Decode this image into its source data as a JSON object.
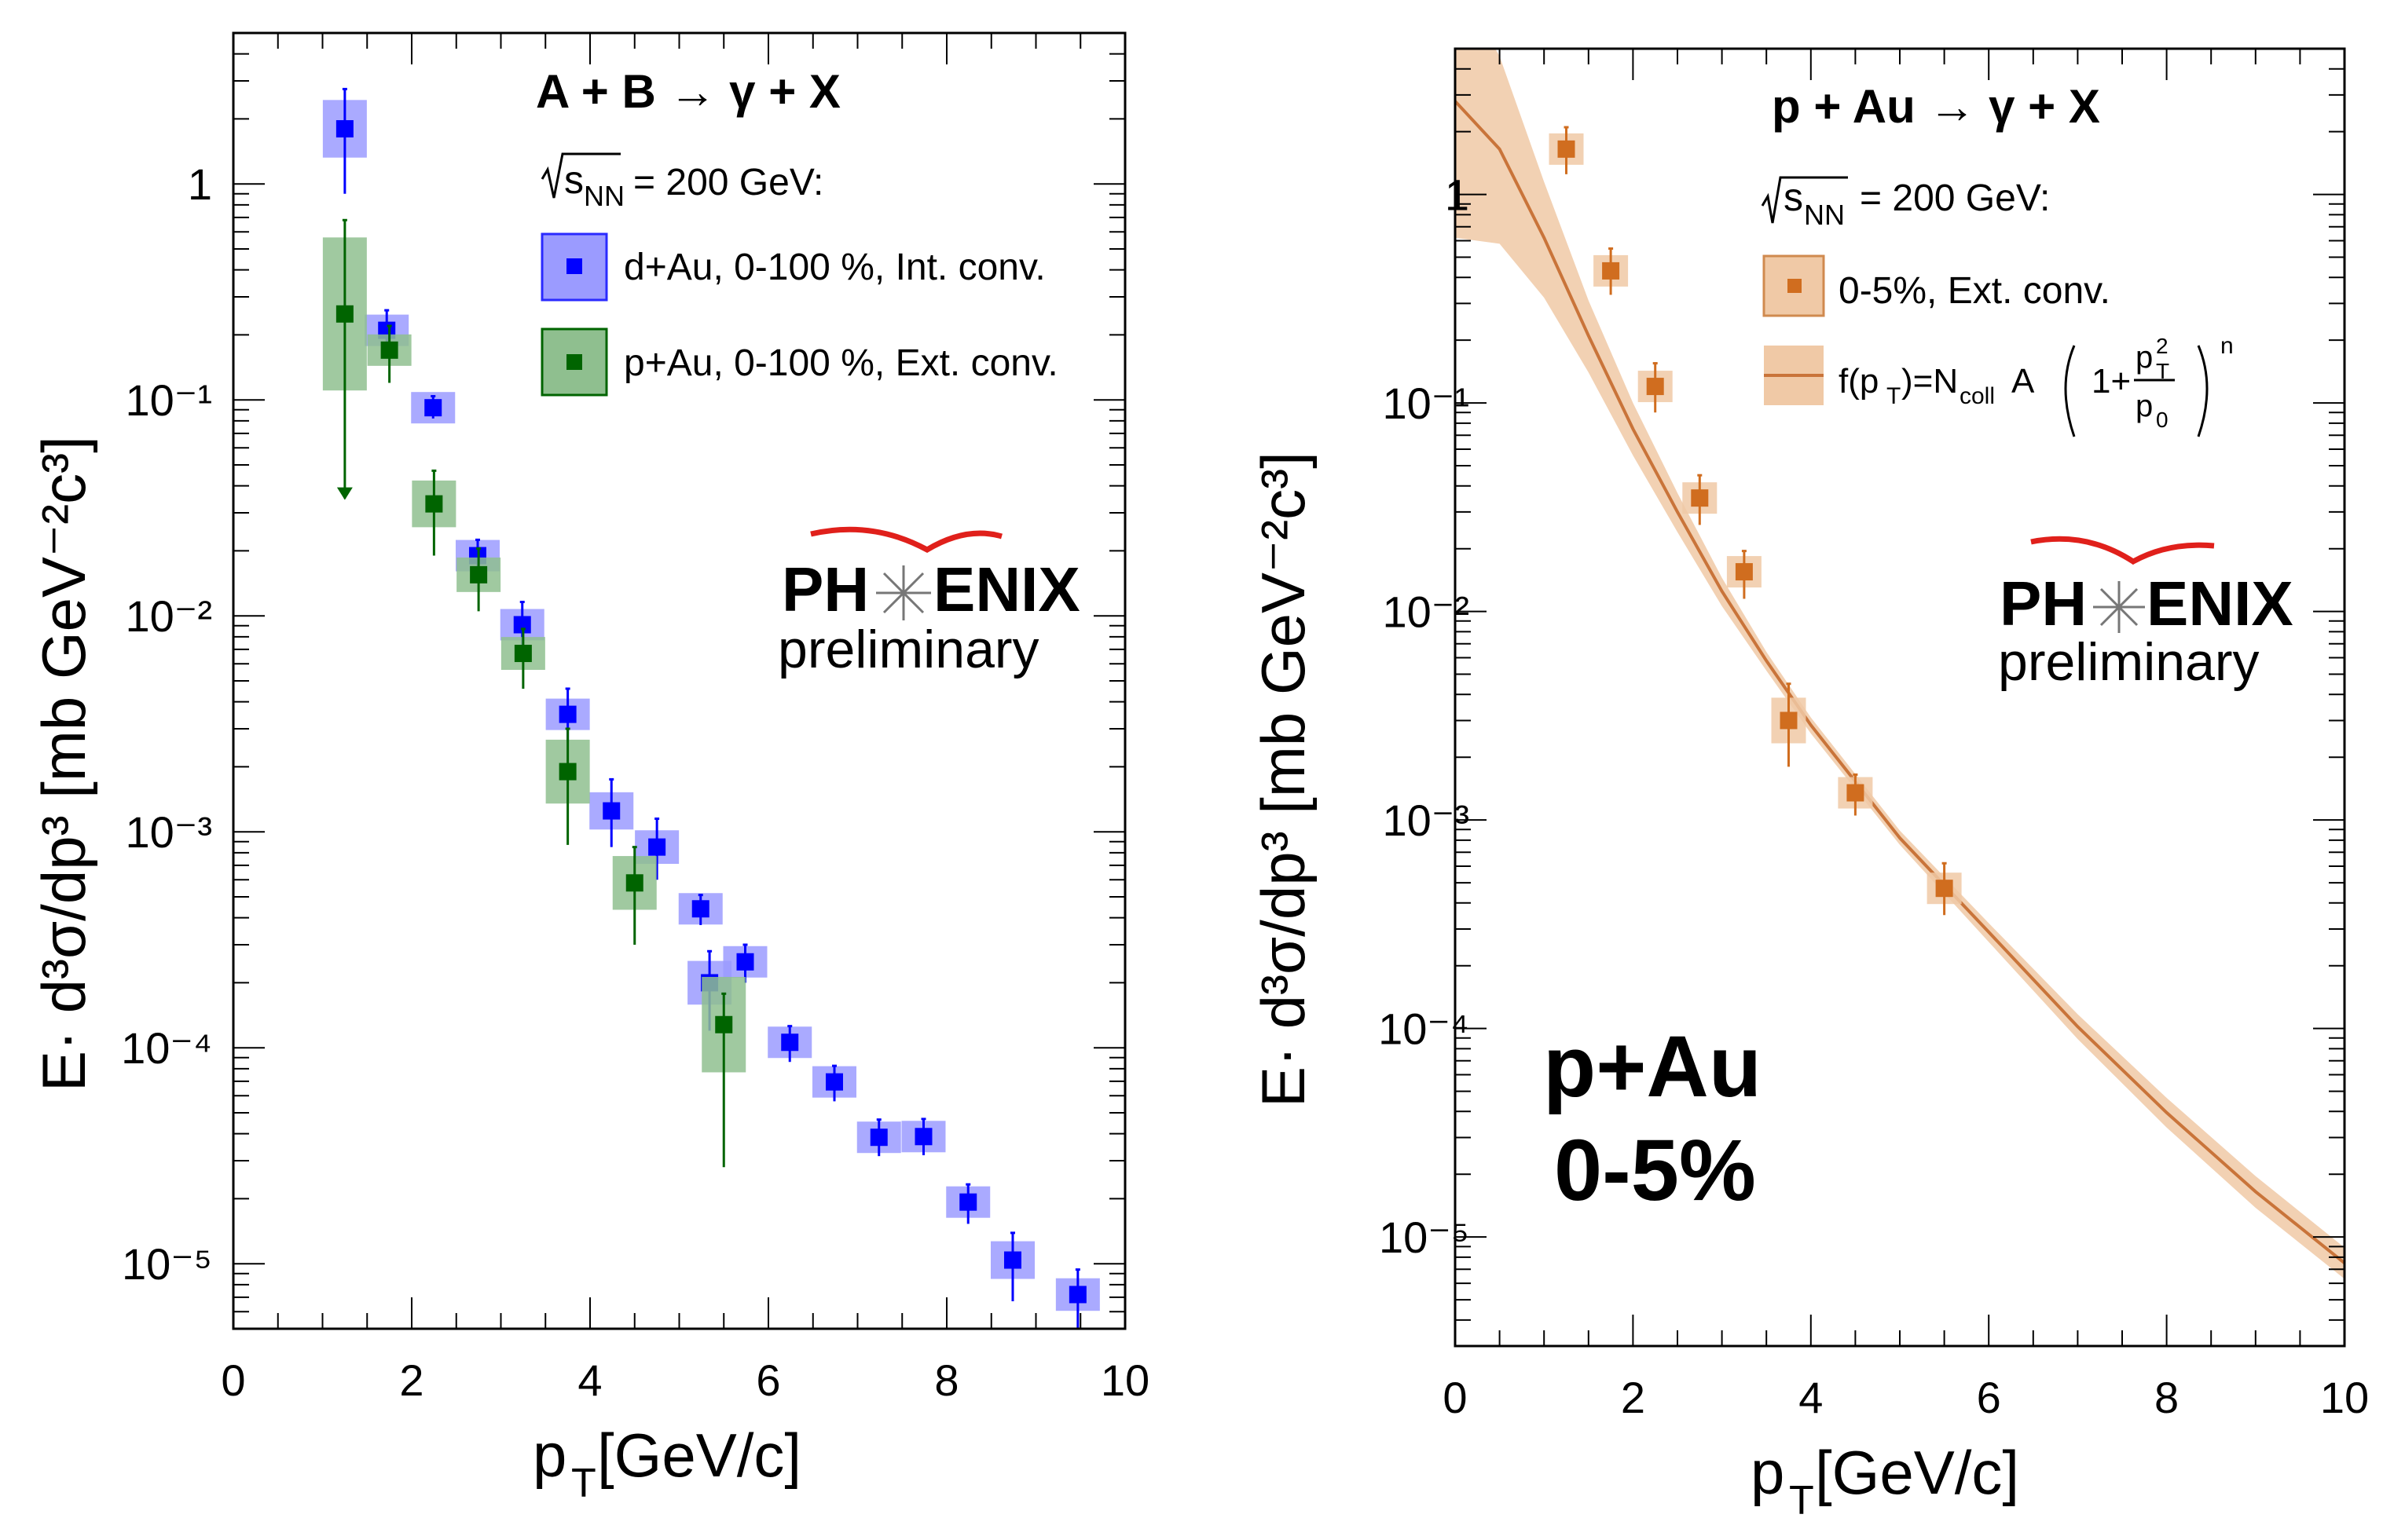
{
  "chart_data": [
    {
      "type": "scatter",
      "title": "A + B → γ + X",
      "energy_label": "= 200 GeV:",
      "sqrt_s_symbol": "s",
      "sqrt_s_sub": "NN",
      "xlabel": "p",
      "xlabel_sub": "T",
      "xlabel_unit": " [GeV/c]",
      "ylabel": "E· d³σ/dp³ [mb GeV⁻²c³]",
      "xlim": [
        0,
        10
      ],
      "ylim": [
        5e-06,
        5
      ],
      "yscale": "log",
      "x_ticks": [
        "0",
        "2",
        "4",
        "6",
        "8",
        "10"
      ],
      "y_ticks": [
        {
          "value": 1,
          "label": "1"
        },
        {
          "value": 0.1,
          "label": "10⁻¹"
        },
        {
          "value": 0.01,
          "label": "10⁻²"
        },
        {
          "value": 0.001,
          "label": "10⁻³"
        },
        {
          "value": 0.0001,
          "label": "10⁻⁴"
        },
        {
          "value": 1e-05,
          "label": "10⁻⁵"
        }
      ],
      "logo": {
        "name": "PHENIX",
        "part1": "PH",
        "part2": "ENIX",
        "status": "preliminary"
      },
      "series": [
        {
          "name": "d+Au, 0-100 %, Int. conv.",
          "color": "#0000ff",
          "syst_color": "#9b9bff",
          "x": [
            1.25,
            1.72,
            2.24,
            2.74,
            3.24,
            3.75,
            4.24,
            4.75,
            5.24,
            5.34,
            5.74,
            6.24,
            6.74,
            7.24,
            7.74,
            8.24,
            8.74,
            9.47
          ],
          "y": [
            1.8,
            0.21,
            0.092,
            0.019,
            0.0091,
            0.0035,
            0.00125,
            0.00085,
            0.00044,
            0.0002,
            0.00025,
            0.000106,
            6.95e-05,
            3.85e-05,
            3.88e-05,
            1.93e-05,
            1.04e-05,
            7.2e-06
          ],
          "err_low": [
            0.9,
            0.045,
            0.01,
            0.003,
            0.002,
            0.0009,
            0.0004,
            0.00025,
            7e-05,
            8e-05,
            5e-05,
            2e-05,
            1.3e-05,
            7e-06,
            7e-06,
            4e-06,
            3.7e-06,
            2.4e-06
          ],
          "err_high": [
            0.95,
            0.05,
            0.012,
            0.0035,
            0.0025,
            0.0011,
            0.0005,
            0.0003,
            7e-05,
            8e-05,
            5e-05,
            2e-05,
            1.3e-05,
            8e-06,
            8e-06,
            4e-06,
            3.5e-06,
            2.2e-06
          ]
        },
        {
          "name": "p+Au, 0-100 %, Ext. conv.",
          "color": "#006400",
          "syst_color": "#8fbf8f",
          "x": [
            1.25,
            1.75,
            2.25,
            2.75,
            3.25,
            3.75,
            4.5,
            5.5
          ],
          "y": [
            0.25,
            0.17,
            0.033,
            0.0155,
            0.0067,
            0.0019,
            0.00058,
            0.000128
          ],
          "err_low": [
            0.215,
            0.05,
            0.014,
            0.005,
            0.0021,
            0.00103,
            0.00028,
            0.0001
          ],
          "err_high": [
            0.43,
            0.05,
            0.014,
            0.005,
            0.002,
            0.0011,
            0.00027,
            5e-05
          ]
        }
      ]
    },
    {
      "type": "scatter",
      "title": "p + Au → γ + X",
      "energy_label": "= 200 GeV:",
      "sqrt_s_symbol": "s",
      "sqrt_s_sub": "NN",
      "xlabel": "p",
      "xlabel_sub": "T",
      "xlabel_unit": " [GeV/c]",
      "ylabel": "E· d³σ/dp³ [mb GeV⁻²c³]",
      "xlim": [
        0,
        10
      ],
      "ylim": [
        3e-06,
        5
      ],
      "yscale": "log",
      "x_ticks": [
        "0",
        "2",
        "4",
        "6",
        "8",
        "10"
      ],
      "y_ticks": [
        {
          "value": 1,
          "label": "1"
        },
        {
          "value": 0.1,
          "label": "10⁻¹"
        },
        {
          "value": 0.01,
          "label": "10⁻²"
        },
        {
          "value": 0.001,
          "label": "10⁻³"
        },
        {
          "value": 0.0001,
          "label": "10⁻⁴"
        },
        {
          "value": 1e-05,
          "label": "10⁻⁵"
        }
      ],
      "logo": {
        "name": "PHENIX",
        "part1": "PH",
        "part2": "ENIX",
        "status": "preliminary"
      },
      "annotation": {
        "line1": "p+Au",
        "line2": "0-5%"
      },
      "fit_formula": {
        "lhs": "f(p",
        "lhs_sub": "T",
        "eq": ")=N",
        "ncoll_sub": "coll",
        "a": " A",
        "one_plus": "1+",
        "num": "p",
        "num_sup": "2",
        "num_sub": "T",
        "den": "p",
        "den_sub": "0",
        "exp": "n"
      },
      "series": [
        {
          "name": "0-5%, Ext. conv.",
          "color": "#d06d1f",
          "syst_color": "#f0c9a6",
          "x": [
            1.25,
            1.75,
            2.25,
            2.75,
            3.25,
            3.75,
            4.5,
            5.5
          ],
          "y": [
            1.65,
            0.43,
            0.12,
            0.035,
            0.0155,
            0.003,
            0.00135,
            0.00047
          ],
          "err_low": [
            0.4,
            0.1,
            0.03,
            0.009,
            0.004,
            0.0012,
            0.0003,
            0.00012
          ],
          "err_high": [
            0.45,
            0.12,
            0.035,
            0.01,
            0.004,
            0.0015,
            0.0003,
            0.00015
          ]
        }
      ],
      "fit": {
        "name": "f(pT)=Ncoll A (1+pT²/p0²)^n",
        "color": "#c9743a",
        "band_color": "#f0c9a6",
        "x": [
          0,
          0.5,
          1,
          1.5,
          2,
          2.5,
          3,
          3.5,
          4,
          5,
          6,
          7,
          8,
          9,
          10
        ],
        "y": [
          2.8,
          1.65,
          0.62,
          0.21,
          0.075,
          0.03,
          0.0125,
          0.0058,
          0.00285,
          0.00082,
          0.00029,
          0.000102,
          3.95e-05,
          1.65e-05,
          7.5e-06
        ],
        "band_low": [
          0.62,
          0.58,
          0.32,
          0.14,
          0.056,
          0.024,
          0.0106,
          0.0052,
          0.0026,
          0.00076,
          0.00026,
          8.9e-05,
          3.35e-05,
          1.38e-05,
          6.3e-06
        ],
        "band_high": [
          11,
          4.6,
          1.15,
          0.31,
          0.1,
          0.037,
          0.0145,
          0.0064,
          0.0031,
          0.00089,
          0.00032,
          0.000117,
          4.65e-05,
          1.96e-05,
          8.9e-06
        ]
      }
    }
  ]
}
